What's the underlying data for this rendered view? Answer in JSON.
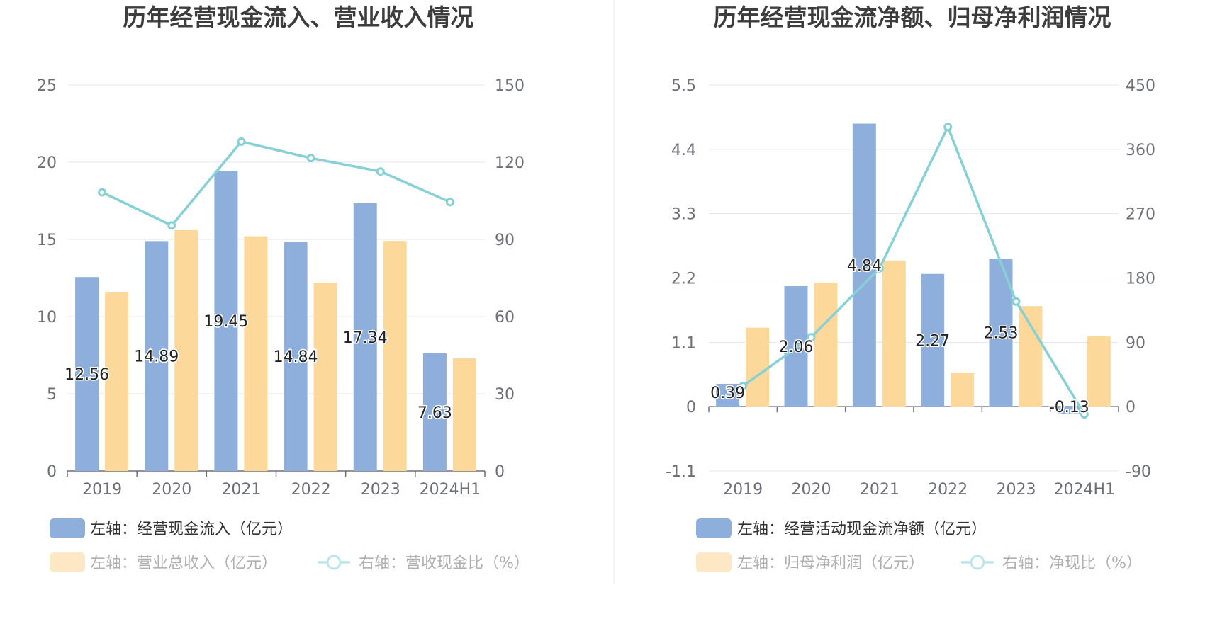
{
  "colors": {
    "bar_primary": "#8eaedb",
    "bar_secondary": "#fdd89b",
    "bar_secondary_legend": "#fde8c6",
    "bar_primary_legend": "#8eaedb",
    "line": "#86d0d6",
    "line_legend": "#bde6ea",
    "grid": "#e0e6f1",
    "axis": "#6e7079",
    "divider": "#eeeeee"
  },
  "chart_data": [
    {
      "type": "bar",
      "title": "历年经营现金流入、营业收入情况",
      "categories": [
        "2019",
        "2020",
        "2021",
        "2022",
        "2023",
        "2024H1"
      ],
      "y_left": {
        "min": 0,
        "max": 25,
        "ticks": [
          "0",
          "5",
          "10",
          "15",
          "20",
          "25"
        ]
      },
      "y_right": {
        "min": 0,
        "max": 150,
        "ticks": [
          "0",
          "30",
          "60",
          "90",
          "120",
          "150"
        ]
      },
      "series": [
        {
          "name": "左轴：经营现金流入（亿元）",
          "kind": "bar",
          "axis": "left",
          "values": [
            12.56,
            14.89,
            19.45,
            14.84,
            17.34,
            7.63
          ],
          "labels": [
            "12.56",
            "14.89",
            "19.45",
            "14.84",
            "17.34",
            "7.63"
          ]
        },
        {
          "name": "左轴：营业总收入（亿元）",
          "kind": "bar",
          "axis": "left",
          "values": [
            11.6,
            15.6,
            15.2,
            12.2,
            14.9,
            7.3
          ]
        },
        {
          "name": "右轴：营收现金比（%）",
          "kind": "line",
          "axis": "right",
          "values": [
            108.3,
            95.4,
            128.0,
            121.6,
            116.4,
            104.5
          ]
        }
      ],
      "legend": "bottom-left",
      "grid": true
    },
    {
      "type": "bar",
      "title": "历年经营现金流净额、归母净利润情况",
      "categories": [
        "2019",
        "2020",
        "2021",
        "2022",
        "2023",
        "2024H1"
      ],
      "y_left": {
        "min": -1.1,
        "max": 5.5,
        "ticks": [
          "-1.1",
          "0",
          "1.1",
          "2.2",
          "3.3",
          "4.4",
          "5.5"
        ]
      },
      "y_right": {
        "min": -90,
        "max": 450,
        "ticks": [
          "-90",
          "0",
          "90",
          "180",
          "270",
          "360",
          "450"
        ]
      },
      "series": [
        {
          "name": "左轴：经营活动现金流净额（亿元）",
          "kind": "bar",
          "axis": "left",
          "values": [
            0.39,
            2.06,
            4.84,
            2.27,
            2.53,
            -0.13
          ],
          "labels": [
            "0.39",
            "2.06",
            "4.84",
            "2.27",
            "2.53",
            "-0.13"
          ]
        },
        {
          "name": "左轴：归母净利润（亿元）",
          "kind": "bar",
          "axis": "left",
          "values": [
            1.35,
            2.12,
            2.5,
            0.58,
            1.72,
            1.2
          ]
        },
        {
          "name": "右轴：净现比（%）",
          "kind": "line",
          "axis": "right",
          "values": [
            28.9,
            97.2,
            193.6,
            391.4,
            147.1,
            -10.8
          ]
        }
      ],
      "legend": "bottom-left",
      "grid": true
    }
  ]
}
